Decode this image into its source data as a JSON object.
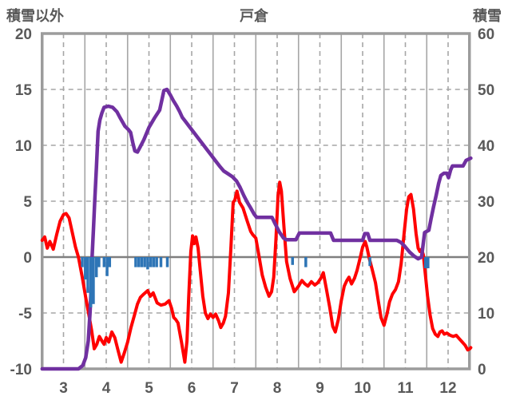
{
  "chart_data": {
    "type": "line",
    "title": "戸倉",
    "left_axis": {
      "label": "積雪以外",
      "min": -10,
      "max": 20,
      "ticks": [
        20,
        15,
        10,
        5,
        0,
        -5,
        -10
      ]
    },
    "right_axis": {
      "label": "積雪",
      "min": 0,
      "max": 60,
      "ticks": [
        60,
        50,
        40,
        30,
        20,
        10,
        0
      ]
    },
    "x_axis": {
      "min": 2.5,
      "max": 12.5,
      "labels": [
        "3",
        "4",
        "5",
        "6",
        "7",
        "8",
        "9",
        "10",
        "11",
        "12"
      ],
      "label_positions": [
        3,
        4,
        5,
        6,
        7,
        8,
        9,
        10,
        11,
        12
      ],
      "solid_gridlines": [
        3.5,
        4.5,
        5.5,
        6.5,
        7.5,
        8.5,
        9.5,
        10.5,
        11.5
      ],
      "dashed_gridlines": [
        3,
        4,
        5,
        6,
        7,
        8,
        9,
        10,
        11,
        12
      ]
    },
    "grid": {
      "dashed_h_values_left": [
        15,
        10,
        5,
        -5
      ],
      "zero_line_left": 0
    },
    "colors": {
      "red_line": "#FF0000",
      "purple_line": "#7030A0",
      "blue_bars": "#2E75B6",
      "gridline": "#A6A6A6",
      "frame": "#9C9C9C",
      "zero_line": "#7F7F7F",
      "text": "#595959"
    },
    "series": [
      {
        "id": "red_line",
        "kind": "line",
        "axis": "left",
        "color": "#FF0000",
        "width": 4,
        "points": [
          [
            2.5,
            1.5
          ],
          [
            2.56,
            1.8
          ],
          [
            2.62,
            0.8
          ],
          [
            2.68,
            1.4
          ],
          [
            2.76,
            0.7
          ],
          [
            2.84,
            2.0
          ],
          [
            2.92,
            3.2
          ],
          [
            3.0,
            3.8
          ],
          [
            3.06,
            3.9
          ],
          [
            3.13,
            3.5
          ],
          [
            3.2,
            2.3
          ],
          [
            3.28,
            0.9
          ],
          [
            3.35,
            0.0
          ],
          [
            3.44,
            -1.8
          ],
          [
            3.52,
            -3.6
          ],
          [
            3.6,
            -5.3
          ],
          [
            3.66,
            -6.6
          ],
          [
            3.72,
            -8.2
          ],
          [
            3.78,
            -7.8
          ],
          [
            3.84,
            -7.1
          ],
          [
            3.9,
            -7.5
          ],
          [
            3.95,
            -7.8
          ],
          [
            4.0,
            -7.2
          ],
          [
            4.06,
            -7.6
          ],
          [
            4.13,
            -6.7
          ],
          [
            4.2,
            -7.2
          ],
          [
            4.28,
            -8.4
          ],
          [
            4.35,
            -9.4
          ],
          [
            4.42,
            -8.6
          ],
          [
            4.5,
            -7.6
          ],
          [
            4.58,
            -6.3
          ],
          [
            4.66,
            -5.2
          ],
          [
            4.73,
            -4.2
          ],
          [
            4.8,
            -3.6
          ],
          [
            4.88,
            -3.3
          ],
          [
            4.97,
            -3.0
          ],
          [
            5.03,
            -3.5
          ],
          [
            5.1,
            -3.2
          ],
          [
            5.19,
            -4.1
          ],
          [
            5.28,
            -4.3
          ],
          [
            5.38,
            -4.2
          ],
          [
            5.47,
            -3.9
          ],
          [
            5.53,
            -4.6
          ],
          [
            5.58,
            -5.4
          ],
          [
            5.63,
            -5.6
          ],
          [
            5.68,
            -5.9
          ],
          [
            5.76,
            -7.6
          ],
          [
            5.84,
            -9.4
          ],
          [
            5.89,
            -7.5
          ],
          [
            5.93,
            -3.5
          ],
          [
            5.98,
            0.5
          ],
          [
            6.02,
            1.9
          ],
          [
            6.06,
            1.2
          ],
          [
            6.1,
            1.8
          ],
          [
            6.15,
            0.8
          ],
          [
            6.2,
            -1.2
          ],
          [
            6.26,
            -3.5
          ],
          [
            6.32,
            -5.0
          ],
          [
            6.38,
            -5.5
          ],
          [
            6.44,
            -5.1
          ],
          [
            6.5,
            -5.4
          ],
          [
            6.56,
            -5.1
          ],
          [
            6.63,
            -5.7
          ],
          [
            6.68,
            -6.3
          ],
          [
            6.74,
            -5.9
          ],
          [
            6.79,
            -5.3
          ],
          [
            6.86,
            -3.2
          ],
          [
            6.92,
            1.0
          ],
          [
            6.97,
            4.9
          ],
          [
            7.01,
            5.1
          ],
          [
            7.06,
            5.9
          ],
          [
            7.12,
            4.9
          ],
          [
            7.2,
            4.4
          ],
          [
            7.3,
            3.2
          ],
          [
            7.38,
            2.3
          ],
          [
            7.43,
            2.0
          ],
          [
            7.5,
            1.7
          ],
          [
            7.57,
            0.2
          ],
          [
            7.65,
            -1.6
          ],
          [
            7.73,
            -2.7
          ],
          [
            7.81,
            -3.5
          ],
          [
            7.87,
            -3.1
          ],
          [
            7.92,
            -1.8
          ],
          [
            7.97,
            1.5
          ],
          [
            8.02,
            5.5
          ],
          [
            8.06,
            6.7
          ],
          [
            8.1,
            5.9
          ],
          [
            8.16,
            2.6
          ],
          [
            8.22,
            -0.4
          ],
          [
            8.3,
            -1.9
          ],
          [
            8.4,
            -3.1
          ],
          [
            8.5,
            -2.6
          ],
          [
            8.58,
            -2.1
          ],
          [
            8.65,
            -2.4
          ],
          [
            8.72,
            -2.6
          ],
          [
            8.8,
            -2.2
          ],
          [
            8.88,
            -2.5
          ],
          [
            8.95,
            -2.3
          ],
          [
            9.02,
            -1.9
          ],
          [
            9.08,
            -1.4
          ],
          [
            9.15,
            -2.8
          ],
          [
            9.23,
            -4.5
          ],
          [
            9.3,
            -6.2
          ],
          [
            9.36,
            -6.7
          ],
          [
            9.43,
            -5.6
          ],
          [
            9.5,
            -3.9
          ],
          [
            9.57,
            -2.6
          ],
          [
            9.63,
            -2.1
          ],
          [
            9.68,
            -1.8
          ],
          [
            9.74,
            -2.4
          ],
          [
            9.81,
            -1.9
          ],
          [
            9.87,
            -1.2
          ],
          [
            9.94,
            -0.1
          ],
          [
            10.0,
            0.9
          ],
          [
            10.06,
            1.4
          ],
          [
            10.1,
            0.9
          ],
          [
            10.16,
            -0.2
          ],
          [
            10.23,
            -1.2
          ],
          [
            10.3,
            -2.3
          ],
          [
            10.37,
            -4.0
          ],
          [
            10.43,
            -5.4
          ],
          [
            10.5,
            -6.1
          ],
          [
            10.57,
            -5.1
          ],
          [
            10.63,
            -4.0
          ],
          [
            10.7,
            -3.3
          ],
          [
            10.77,
            -2.9
          ],
          [
            10.84,
            -2.2
          ],
          [
            10.9,
            -0.6
          ],
          [
            10.97,
            2.1
          ],
          [
            11.03,
            4.3
          ],
          [
            11.08,
            5.4
          ],
          [
            11.13,
            5.6
          ],
          [
            11.19,
            4.3
          ],
          [
            11.25,
            2.1
          ],
          [
            11.3,
            0.8
          ],
          [
            11.34,
            0.5
          ],
          [
            11.38,
            0.7
          ],
          [
            11.42,
            0.2
          ],
          [
            11.47,
            -1.6
          ],
          [
            11.52,
            -3.5
          ],
          [
            11.58,
            -5.2
          ],
          [
            11.64,
            -6.4
          ],
          [
            11.7,
            -6.9
          ],
          [
            11.76,
            -7.1
          ],
          [
            11.81,
            -6.7
          ],
          [
            11.86,
            -6.6
          ],
          [
            11.91,
            -6.9
          ],
          [
            11.97,
            -6.8
          ],
          [
            12.05,
            -7.0
          ],
          [
            12.12,
            -7.1
          ],
          [
            12.19,
            -7.0
          ],
          [
            12.26,
            -7.3
          ],
          [
            12.33,
            -7.6
          ],
          [
            12.4,
            -7.9
          ],
          [
            12.46,
            -8.3
          ],
          [
            12.51,
            -8.2
          ],
          [
            12.53,
            -8.1
          ]
        ]
      },
      {
        "id": "purple_line",
        "kind": "line",
        "axis": "right",
        "color": "#7030A0",
        "width": 4.5,
        "points": [
          [
            2.5,
            0
          ],
          [
            3.2,
            0
          ],
          [
            3.35,
            0
          ],
          [
            3.45,
            0.6
          ],
          [
            3.52,
            2
          ],
          [
            3.58,
            5
          ],
          [
            3.62,
            10
          ],
          [
            3.65,
            15
          ],
          [
            3.67,
            20
          ],
          [
            3.7,
            25
          ],
          [
            3.73,
            30
          ],
          [
            3.77,
            36
          ],
          [
            3.81,
            42.5
          ],
          [
            3.85,
            44.5
          ],
          [
            3.9,
            45.8
          ],
          [
            3.95,
            46.8
          ],
          [
            4.05,
            47
          ],
          [
            4.15,
            46.8
          ],
          [
            4.25,
            46
          ],
          [
            4.32,
            45
          ],
          [
            4.44,
            43.4
          ],
          [
            4.52,
            42.8
          ],
          [
            4.57,
            42.3
          ],
          [
            4.62,
            40.5
          ],
          [
            4.67,
            39
          ],
          [
            4.73,
            38.8
          ],
          [
            4.8,
            39.8
          ],
          [
            4.88,
            41
          ],
          [
            5.0,
            43.2
          ],
          [
            5.13,
            44.9
          ],
          [
            5.25,
            46.3
          ],
          [
            5.3,
            48
          ],
          [
            5.35,
            49.8
          ],
          [
            5.42,
            50
          ],
          [
            5.5,
            49
          ],
          [
            5.57,
            48
          ],
          [
            5.65,
            47
          ],
          [
            5.72,
            46
          ],
          [
            5.78,
            45
          ],
          [
            5.85,
            44.3
          ],
          [
            5.95,
            43.3
          ],
          [
            6.05,
            42.3
          ],
          [
            6.15,
            41.3
          ],
          [
            6.25,
            40.3
          ],
          [
            6.35,
            39.3
          ],
          [
            6.45,
            38.3
          ],
          [
            6.55,
            37.3
          ],
          [
            6.65,
            36.3
          ],
          [
            6.75,
            35.4
          ],
          [
            6.85,
            34.9
          ],
          [
            6.95,
            34.4
          ],
          [
            7.05,
            33.6
          ],
          [
            7.13,
            32.5
          ],
          [
            7.22,
            31.0
          ],
          [
            7.3,
            29.8
          ],
          [
            7.38,
            28.8
          ],
          [
            7.46,
            27.7
          ],
          [
            7.52,
            27.1
          ],
          [
            7.88,
            27.1
          ],
          [
            7.95,
            26.0
          ],
          [
            8.05,
            24.5
          ],
          [
            8.15,
            23.4
          ],
          [
            8.22,
            23.1
          ],
          [
            8.44,
            23.1
          ],
          [
            8.52,
            24.3
          ],
          [
            9.25,
            24.3
          ],
          [
            9.32,
            23.0
          ],
          [
            10.0,
            23.0
          ],
          [
            10.05,
            24.2
          ],
          [
            10.12,
            24.2
          ],
          [
            10.17,
            23.0
          ],
          [
            10.8,
            23.0
          ],
          [
            10.9,
            22.6
          ],
          [
            11.0,
            21.8
          ],
          [
            11.1,
            20.9
          ],
          [
            11.2,
            20.2
          ],
          [
            11.3,
            19.7
          ],
          [
            11.38,
            20.0
          ],
          [
            11.45,
            24.4
          ],
          [
            11.55,
            24.8
          ],
          [
            11.6,
            26.8
          ],
          [
            11.66,
            29.0
          ],
          [
            11.72,
            31.0
          ],
          [
            11.78,
            33.2
          ],
          [
            11.83,
            34.6
          ],
          [
            11.9,
            35.0
          ],
          [
            11.97,
            35.0
          ],
          [
            12.01,
            34.2
          ],
          [
            12.06,
            35.6
          ],
          [
            12.1,
            36.3
          ],
          [
            12.35,
            36.3
          ],
          [
            12.42,
            37.3
          ],
          [
            12.53,
            37.7
          ]
        ]
      },
      {
        "id": "blue_bars",
        "kind": "bar",
        "axis": "left",
        "color": "#2E75B6",
        "bar_width": 3.5,
        "points": [
          [
            3.44,
            -0.9
          ],
          [
            3.51,
            -2.0
          ],
          [
            3.57,
            -3.2
          ],
          [
            3.64,
            -4.5
          ],
          [
            3.7,
            -4.2
          ],
          [
            3.77,
            -1.8
          ],
          [
            3.83,
            -0.9
          ],
          [
            3.95,
            -0.9
          ],
          [
            4.02,
            -1.7
          ],
          [
            4.08,
            -0.9
          ],
          [
            4.69,
            -0.9
          ],
          [
            4.76,
            -0.9
          ],
          [
            4.83,
            -0.9
          ],
          [
            4.9,
            -0.9
          ],
          [
            4.97,
            -1.1
          ],
          [
            5.04,
            -0.9
          ],
          [
            5.11,
            -0.9
          ],
          [
            5.18,
            -0.9
          ],
          [
            5.28,
            -0.9
          ],
          [
            5.43,
            -0.9
          ],
          [
            8.36,
            -0.7
          ],
          [
            8.67,
            -0.9
          ],
          [
            10.17,
            -0.8
          ],
          [
            11.47,
            -1.0
          ],
          [
            11.53,
            -1.0
          ]
        ]
      }
    ]
  }
}
